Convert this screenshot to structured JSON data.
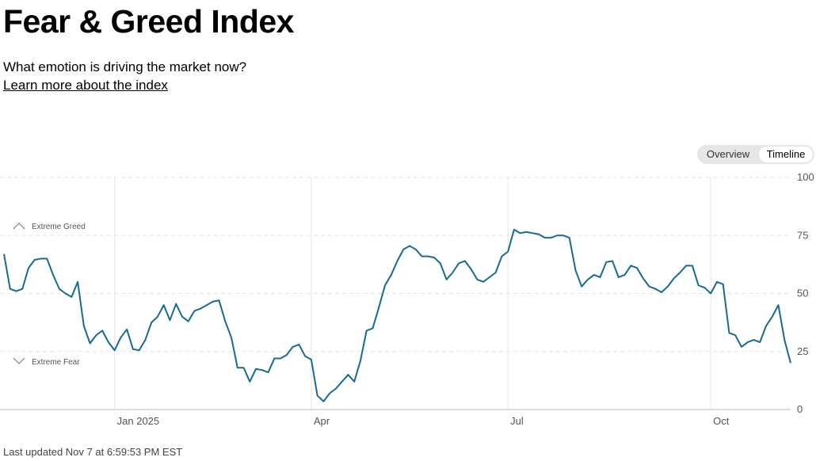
{
  "header": {
    "title": "Fear & Greed Index",
    "subtitle": "What emotion is driving the market now?",
    "link": "Learn more about the index"
  },
  "toggle": {
    "options": [
      "Overview",
      "Timeline"
    ]
  },
  "footer": "Last updated Nov 7 at 6:59:53 PM EST",
  "chart_data": {
    "type": "line",
    "color": "#176b91",
    "grid": true,
    "annotations": [
      "Extreme Greed",
      "Extreme Fear"
    ],
    "ylim": [
      0,
      100
    ],
    "yticks": [
      0,
      25,
      50,
      75,
      100
    ],
    "categories": [
      null,
      null,
      null,
      null,
      null,
      null,
      null,
      null,
      null,
      null,
      null,
      null,
      null,
      null,
      null,
      null,
      null,
      null,
      "Jan 2025",
      null,
      null,
      null,
      null,
      null,
      null,
      null,
      null,
      null,
      null,
      null,
      null,
      null,
      null,
      null,
      null,
      null,
      null,
      null,
      null,
      null,
      null,
      null,
      null,
      null,
      null,
      null,
      null,
      null,
      null,
      null,
      "Apr",
      null,
      null,
      null,
      null,
      null,
      null,
      null,
      null,
      null,
      null,
      null,
      null,
      null,
      null,
      null,
      null,
      null,
      null,
      null,
      null,
      null,
      null,
      null,
      null,
      null,
      null,
      null,
      null,
      null,
      null,
      null,
      "Jul",
      null,
      null,
      null,
      null,
      null,
      null,
      null,
      null,
      null,
      null,
      null,
      null,
      null,
      null,
      null,
      null,
      null,
      null,
      null,
      null,
      null,
      null,
      null,
      null,
      null,
      null,
      null,
      null,
      null,
      null,
      null,
      null,
      "Oct",
      null,
      null,
      null,
      null,
      null,
      null,
      null,
      null,
      null,
      null,
      null,
      null,
      null
    ],
    "values": [
      67,
      52,
      51,
      52,
      61,
      64.5,
      65,
      65,
      58,
      52,
      50,
      48.5,
      55,
      36,
      28.5,
      32,
      34,
      29,
      25.5,
      31,
      34.5,
      26,
      25.5,
      30,
      37.5,
      40,
      45,
      38.5,
      45.5,
      40,
      38,
      42.5,
      43.5,
      45,
      46.5,
      47,
      38,
      31,
      18,
      18,
      12,
      17.5,
      17,
      16,
      22,
      22,
      23.5,
      27,
      28,
      23,
      21.5,
      6,
      3.5,
      7,
      9,
      12,
      15,
      12,
      21,
      34,
      35,
      44,
      53.5,
      58,
      64,
      69,
      70.5,
      69,
      66,
      66,
      65.5,
      63,
      56,
      59,
      63,
      64,
      60.5,
      56,
      55,
      57,
      59,
      66,
      68,
      77.5,
      76,
      76.5,
      76,
      75.5,
      74,
      74,
      75,
      75,
      74,
      60,
      53,
      56,
      58,
      57,
      63.5,
      64,
      57,
      58,
      62,
      61,
      56.5,
      53,
      52,
      50.5,
      53,
      56.5,
      59,
      62,
      62,
      53.5,
      52.5,
      50,
      55,
      54,
      33,
      32,
      27,
      29,
      30,
      29,
      36,
      40,
      45,
      30,
      20
    ]
  }
}
